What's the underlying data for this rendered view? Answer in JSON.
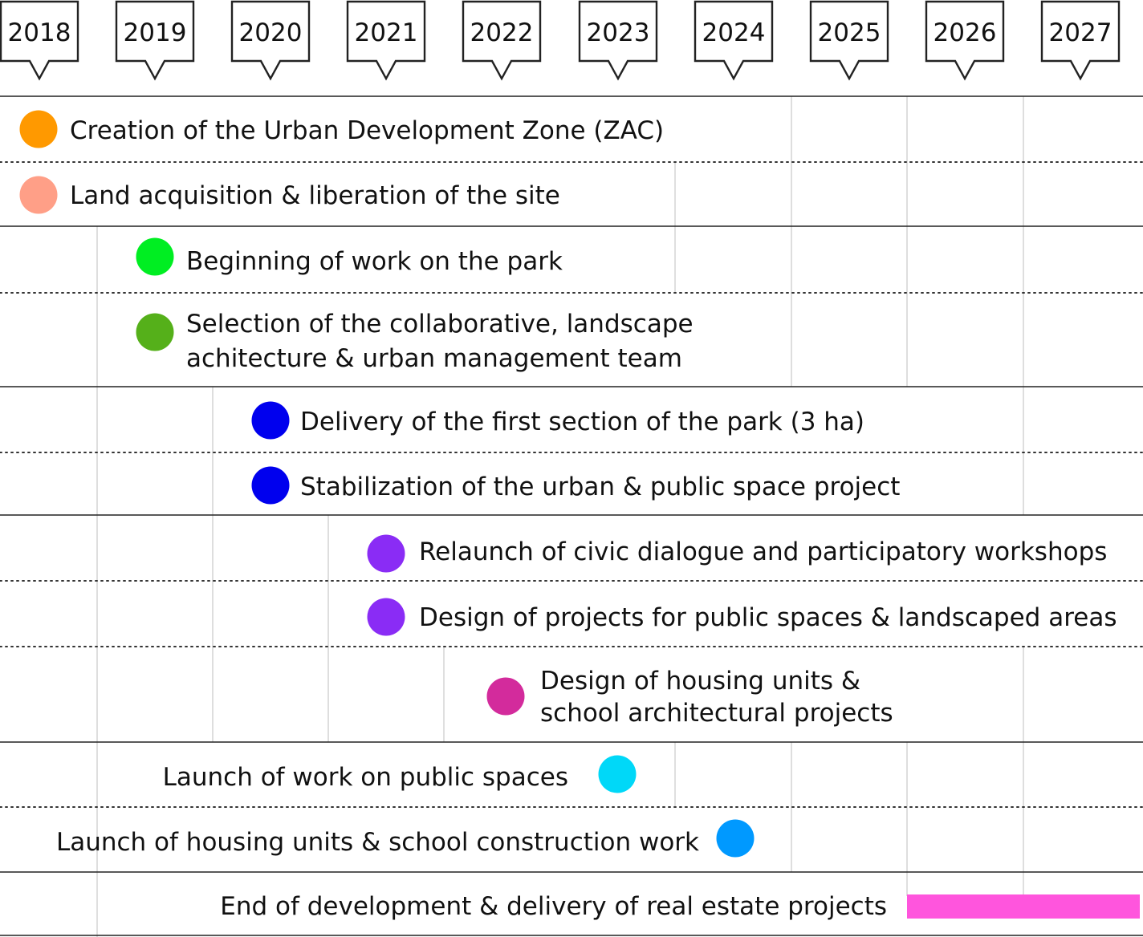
{
  "years": [
    "2018",
    "2019",
    "2020",
    "2021",
    "2022",
    "2023",
    "2024",
    "2025",
    "2026",
    "2027"
  ],
  "milestones": [
    {
      "lines": [
        "Creation of the Urban Development Zone (ZAC)"
      ],
      "year": "2018",
      "color": "#ff9900"
    },
    {
      "lines": [
        "Land acquisition & liberation of the site"
      ],
      "year": "2018",
      "color": "#ff9f87"
    },
    {
      "lines": [
        "Beginning of work on the park"
      ],
      "year": "2019",
      "color": "#00ee22"
    },
    {
      "lines": [
        "Selection of the collaborative, landscape",
        "achitecture & urban management team"
      ],
      "year": "2019",
      "color": "#55b01a"
    },
    {
      "lines": [
        "Delivery of the first section of the park (3 ha)"
      ],
      "year": "2020",
      "color": "#0000ee"
    },
    {
      "lines": [
        "Stabilization of the urban & public space project"
      ],
      "year": "2020",
      "color": "#0000ee"
    },
    {
      "lines": [
        "Relaunch of civic dialogue and participatory workshops"
      ],
      "year": "2021",
      "color": "#8a2cf5"
    },
    {
      "lines": [
        "Design of projects for public spaces & landscaped areas"
      ],
      "year": "2021",
      "color": "#8a2cf5"
    },
    {
      "lines": [
        "Design of housing units &",
        "school architectural projects"
      ],
      "year": "2022",
      "color": "#d32b9c"
    },
    {
      "lines": [
        "Launch of work on public spaces"
      ],
      "year": "2023",
      "color": "#00d8f8"
    },
    {
      "lines": [
        "Launch of housing units & school construction work"
      ],
      "year": "2024",
      "color": "#0099ff"
    },
    {
      "lines": [
        "End of development & delivery of real estate projects"
      ],
      "year": "2026–2027",
      "color": "#ff55dd"
    }
  ]
}
